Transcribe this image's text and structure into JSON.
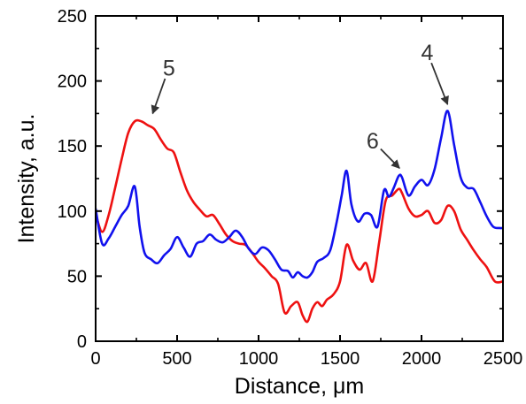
{
  "chart_data": {
    "type": "line",
    "xlabel": "Distance, μm",
    "ylabel": "Intensity, a.u.",
    "xlim": [
      0,
      2500
    ],
    "ylim": [
      0,
      250
    ],
    "xticks": [
      0,
      500,
      1000,
      1500,
      2000,
      2500
    ],
    "yticks": [
      0,
      50,
      100,
      150,
      200,
      250
    ],
    "grid": false,
    "series": [
      {
        "color": "#ee1111",
        "x": [
          0,
          40,
          80,
          120,
          160,
          200,
          240,
          280,
          320,
          360,
          400,
          440,
          480,
          520,
          560,
          600,
          640,
          680,
          720,
          760,
          800,
          840,
          880,
          920,
          960,
          1000,
          1040,
          1080,
          1120,
          1160,
          1200,
          1240,
          1270,
          1300,
          1330,
          1360,
          1390,
          1420,
          1460,
          1500,
          1540,
          1580,
          1620,
          1660,
          1700,
          1740,
          1780,
          1820,
          1860,
          1880,
          1920,
          1960,
          2000,
          2040,
          2080,
          2120,
          2160,
          2200,
          2240,
          2280,
          2320,
          2360,
          2400,
          2450,
          2500
        ],
        "y": [
          98,
          84,
          97,
          118,
          140,
          160,
          169,
          169,
          166,
          163,
          155,
          148,
          145,
          130,
          116,
          107,
          101,
          96,
          97,
          90,
          82,
          77,
          75,
          74,
          68,
          61,
          56,
          50,
          44,
          22,
          27,
          30,
          20,
          15,
          25,
          30,
          27,
          32,
          36,
          46,
          74,
          62,
          55,
          60,
          46,
          76,
          108,
          112,
          117,
          114,
          102,
          96,
          97,
          100,
          91,
          93,
          104,
          100,
          86,
          78,
          70,
          63,
          57,
          46,
          46
        ]
      },
      {
        "color": "#1111ee",
        "x": [
          0,
          40,
          80,
          120,
          160,
          200,
          240,
          270,
          300,
          340,
          380,
          420,
          460,
          500,
          540,
          580,
          620,
          660,
          700,
          740,
          780,
          820,
          860,
          900,
          940,
          980,
          1020,
          1060,
          1100,
          1140,
          1180,
          1210,
          1240,
          1270,
          1300,
          1330,
          1360,
          1400,
          1440,
          1480,
          1510,
          1540,
          1570,
          1610,
          1650,
          1690,
          1730,
          1770,
          1800,
          1830,
          1860,
          1880,
          1920,
          1960,
          2000,
          2040,
          2080,
          2120,
          2160,
          2200,
          2240,
          2280,
          2320,
          2360,
          2400,
          2440,
          2480,
          2500
        ],
        "y": [
          102,
          75,
          79,
          88,
          97,
          104,
          119,
          88,
          68,
          63,
          60,
          66,
          71,
          80,
          72,
          65,
          75,
          77,
          82,
          78,
          76,
          80,
          85,
          80,
          71,
          67,
          72,
          70,
          63,
          55,
          54,
          49,
          53,
          50,
          49,
          53,
          61,
          64,
          70,
          92,
          112,
          131,
          105,
          92,
          98,
          97,
          88,
          116,
          111,
          118,
          127,
          126,
          112,
          119,
          124,
          120,
          132,
          156,
          177,
          151,
          126,
          118,
          117,
          107,
          96,
          88,
          87,
          87
        ]
      }
    ],
    "annotations": [
      {
        "text": "5",
        "x": 450,
        "y": 204,
        "arrow_to": [
          350,
          175
        ]
      },
      {
        "text": "6",
        "x": 1700,
        "y": 148,
        "arrow_to": [
          1865,
          133
        ]
      },
      {
        "text": "4",
        "x": 2035,
        "y": 216,
        "arrow_to": [
          2160,
          182
        ]
      }
    ]
  }
}
